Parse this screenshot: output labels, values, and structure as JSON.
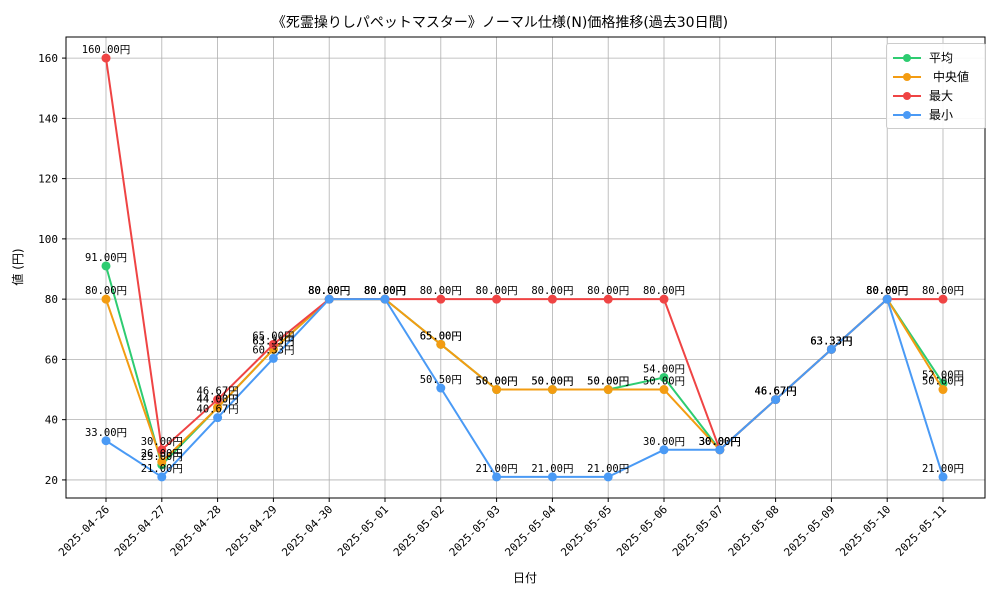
{
  "chart_data": {
    "type": "line",
    "title": "《死霊操りしパペットマスター》ノーマル仕様(N)価格推移(過去30日間)",
    "xlabel": "日付",
    "ylabel": "値 (円)",
    "categories": [
      "2025-04-26",
      "2025-04-27",
      "2025-04-28",
      "2025-04-29",
      "2025-04-30",
      "2025-05-01",
      "2025-05-02",
      "2025-05-03",
      "2025-05-04",
      "2025-05-05",
      "2025-05-06",
      "2025-05-07",
      "2025-05-08",
      "2025-05-09",
      "2025-05-10",
      "2025-05-11"
    ],
    "ylim": [
      14,
      167
    ],
    "yticks": [
      20,
      40,
      60,
      80,
      100,
      120,
      140,
      160
    ],
    "grid": true,
    "legend_position": "top-right",
    "value_suffix": "円",
    "series": [
      {
        "name": "平均",
        "color": "#2ecc71",
        "values": [
          91.0,
          25.0,
          44.0,
          63.33,
          80.0,
          80.0,
          65.0,
          50.0,
          50.0,
          50.0,
          54.0,
          30.0,
          46.67,
          63.33,
          80.0,
          52.0
        ]
      },
      {
        "name": "中央値",
        "color": "#f39c12",
        "values": [
          80.0,
          26.0,
          44.0,
          63.33,
          80.0,
          80.0,
          65.0,
          50.0,
          50.0,
          50.0,
          50.0,
          30.0,
          46.67,
          63.33,
          80.0,
          50.0
        ]
      },
      {
        "name": "最大",
        "color": "#ef4444",
        "values": [
          160.0,
          30.0,
          46.67,
          65.0,
          80.0,
          80.0,
          80.0,
          80.0,
          80.0,
          80.0,
          80.0,
          30.0,
          46.67,
          63.33,
          80.0,
          80.0
        ]
      },
      {
        "name": "最小",
        "color": "#4a9af5",
        "values": [
          33.0,
          21.0,
          40.67,
          60.33,
          80.0,
          80.0,
          50.5,
          21.0,
          21.0,
          21.0,
          30.0,
          30.0,
          46.67,
          63.33,
          80.0,
          21.0
        ]
      }
    ]
  }
}
